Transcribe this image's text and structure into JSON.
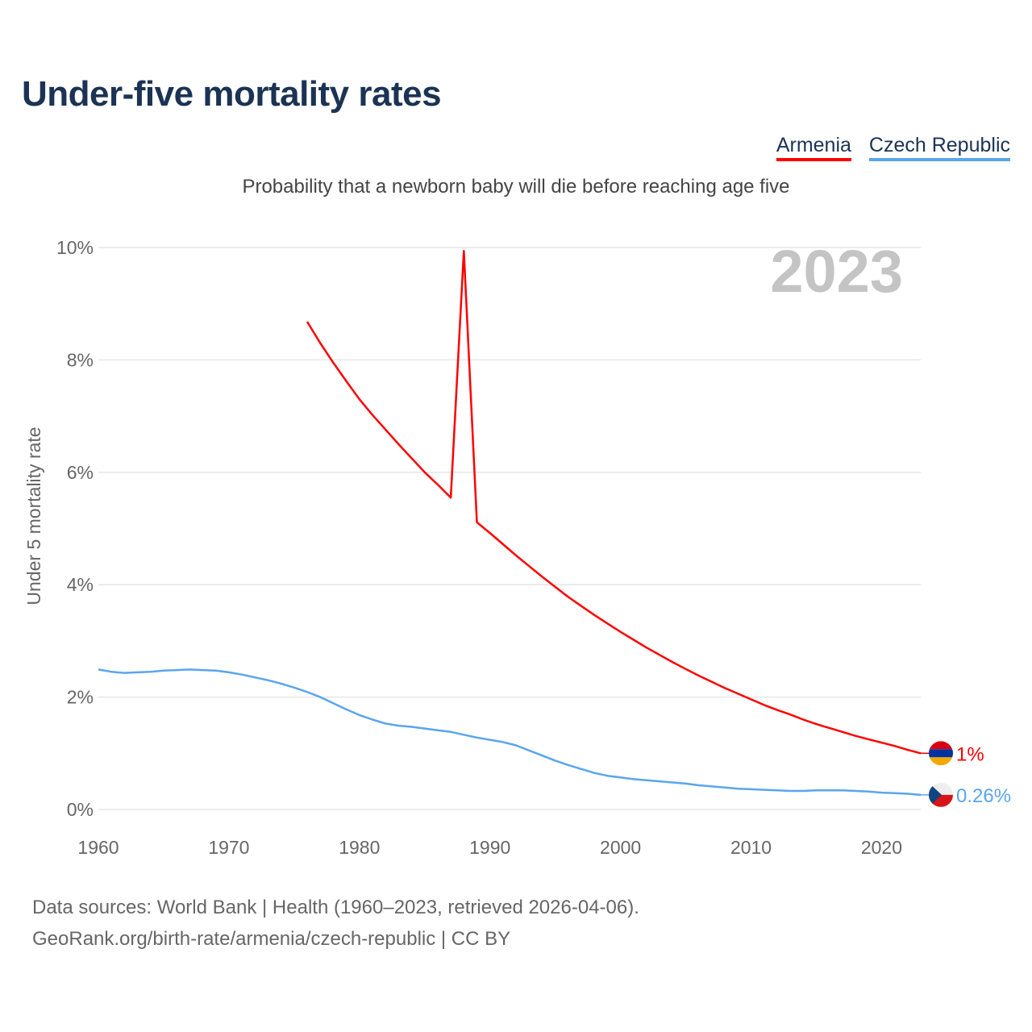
{
  "chart_data": {
    "type": "line",
    "title": "Under-five mortality rates",
    "subtitle": "Probability that a newborn baby will die before reaching age five",
    "ylabel": "Under 5 mortality rate",
    "xlabel": "",
    "xlim": [
      1960,
      2023
    ],
    "ylim": [
      0,
      10
    ],
    "x_ticks": [
      "1960",
      "1970",
      "1980",
      "1990",
      "2000",
      "2010",
      "2020"
    ],
    "y_ticks": [
      "0%",
      "2%",
      "4%",
      "6%",
      "8%",
      "10%"
    ],
    "grid": true,
    "legend_position": "top-right",
    "year_annotation": "2023",
    "series": [
      {
        "name": "Armenia",
        "color": "#ff0000",
        "end_label": "1%",
        "points": [
          [
            1976,
            8.68
          ],
          [
            1977,
            8.3
          ],
          [
            1978,
            7.95
          ],
          [
            1979,
            7.62
          ],
          [
            1980,
            7.3
          ],
          [
            1981,
            7.02
          ],
          [
            1982,
            6.76
          ],
          [
            1983,
            6.5
          ],
          [
            1984,
            6.25
          ],
          [
            1985,
            6.0
          ],
          [
            1986,
            5.78
          ],
          [
            1987,
            5.55
          ],
          [
            1988,
            9.94
          ],
          [
            1989,
            5.11
          ],
          [
            1990,
            4.92
          ],
          [
            1991,
            4.72
          ],
          [
            1992,
            4.52
          ],
          [
            1993,
            4.33
          ],
          [
            1994,
            4.14
          ],
          [
            1995,
            3.96
          ],
          [
            1996,
            3.78
          ],
          [
            1997,
            3.62
          ],
          [
            1998,
            3.46
          ],
          [
            1999,
            3.31
          ],
          [
            2000,
            3.16
          ],
          [
            2001,
            3.02
          ],
          [
            2002,
            2.88
          ],
          [
            2003,
            2.75
          ],
          [
            2004,
            2.62
          ],
          [
            2005,
            2.5
          ],
          [
            2006,
            2.38
          ],
          [
            2007,
            2.27
          ],
          [
            2008,
            2.16
          ],
          [
            2009,
            2.06
          ],
          [
            2010,
            1.96
          ],
          [
            2011,
            1.86
          ],
          [
            2012,
            1.77
          ],
          [
            2013,
            1.69
          ],
          [
            2014,
            1.6
          ],
          [
            2015,
            1.52
          ],
          [
            2016,
            1.45
          ],
          [
            2017,
            1.38
          ],
          [
            2018,
            1.31
          ],
          [
            2019,
            1.25
          ],
          [
            2020,
            1.19
          ],
          [
            2021,
            1.13
          ],
          [
            2022,
            1.06
          ],
          [
            2023,
            1.0
          ]
        ]
      },
      {
        "name": "Czech Republic",
        "color": "#5aa5ee",
        "end_label": "0.26%",
        "points": [
          [
            1960,
            2.49
          ],
          [
            1961,
            2.45
          ],
          [
            1962,
            2.43
          ],
          [
            1963,
            2.44
          ],
          [
            1964,
            2.45
          ],
          [
            1965,
            2.47
          ],
          [
            1966,
            2.48
          ],
          [
            1967,
            2.49
          ],
          [
            1968,
            2.48
          ],
          [
            1969,
            2.47
          ],
          [
            1970,
            2.44
          ],
          [
            1971,
            2.4
          ],
          [
            1972,
            2.35
          ],
          [
            1973,
            2.3
          ],
          [
            1974,
            2.24
          ],
          [
            1975,
            2.17
          ],
          [
            1976,
            2.09
          ],
          [
            1977,
            2.0
          ],
          [
            1978,
            1.89
          ],
          [
            1979,
            1.78
          ],
          [
            1980,
            1.68
          ],
          [
            1981,
            1.6
          ],
          [
            1982,
            1.53
          ],
          [
            1983,
            1.49
          ],
          [
            1984,
            1.47
          ],
          [
            1985,
            1.44
          ],
          [
            1986,
            1.41
          ],
          [
            1987,
            1.38
          ],
          [
            1988,
            1.33
          ],
          [
            1989,
            1.28
          ],
          [
            1990,
            1.24
          ],
          [
            1991,
            1.2
          ],
          [
            1992,
            1.14
          ],
          [
            1993,
            1.05
          ],
          [
            1994,
            0.96
          ],
          [
            1995,
            0.87
          ],
          [
            1996,
            0.79
          ],
          [
            1997,
            0.72
          ],
          [
            1998,
            0.65
          ],
          [
            1999,
            0.6
          ],
          [
            2000,
            0.57
          ],
          [
            2001,
            0.54
          ],
          [
            2002,
            0.52
          ],
          [
            2003,
            0.5
          ],
          [
            2004,
            0.48
          ],
          [
            2005,
            0.46
          ],
          [
            2006,
            0.43
          ],
          [
            2007,
            0.41
          ],
          [
            2008,
            0.39
          ],
          [
            2009,
            0.37
          ],
          [
            2010,
            0.36
          ],
          [
            2011,
            0.35
          ],
          [
            2012,
            0.34
          ],
          [
            2013,
            0.33
          ],
          [
            2014,
            0.33
          ],
          [
            2015,
            0.34
          ],
          [
            2016,
            0.34
          ],
          [
            2017,
            0.34
          ],
          [
            2018,
            0.33
          ],
          [
            2019,
            0.32
          ],
          [
            2020,
            0.3
          ],
          [
            2021,
            0.29
          ],
          [
            2022,
            0.28
          ],
          [
            2023,
            0.26
          ]
        ]
      }
    ]
  },
  "footer": {
    "line1": "Data sources: World Bank | Health (1960–2023, retrieved 2026-04-06).",
    "line2": "GeoRank.org/birth-rate/armenia/czech-republic | CC BY"
  }
}
